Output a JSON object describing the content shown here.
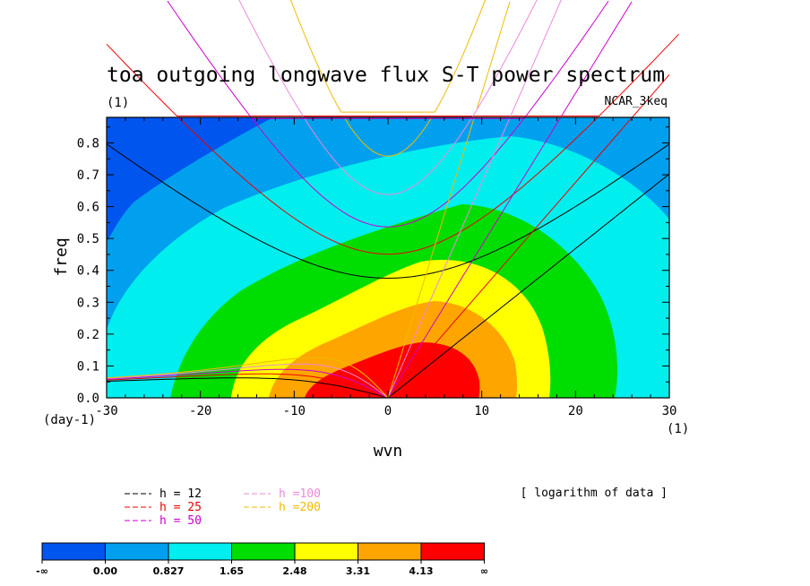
{
  "chart_data": {
    "type": "contour",
    "title": "toa outgoing longwave flux S-T power spectrum",
    "subtitle_units": "(1)",
    "model": "NCAR_3keq",
    "xlabel": "wvn",
    "ylabel": "freq",
    "x_unit": "(1)",
    "y_unit": "(day-1)",
    "xlim": [
      -30,
      30
    ],
    "ylim": [
      0,
      0.88
    ],
    "x_ticks": [
      -30,
      -20,
      -10,
      0,
      10,
      20,
      30
    ],
    "x_tick_labels": [
      "-30",
      "-20",
      "-10",
      "0",
      "10",
      "20",
      "30"
    ],
    "y_ticks": [
      0,
      0.1,
      0.2,
      0.3,
      0.4,
      0.5,
      0.6,
      0.7,
      0.8
    ],
    "y_tick_labels": [
      "0.0",
      "0.1",
      "0.2",
      "0.3",
      "0.4",
      "0.5",
      "0.6",
      "0.7",
      "0.8"
    ],
    "data_note": "[ logarithm of data ]",
    "levels": [
      "-∞",
      "0.00",
      "0.827",
      "1.65",
      "2.48",
      "3.31",
      "4.13",
      "∞"
    ],
    "level_colors": [
      "#0055ee",
      "#00a0ee",
      "#00eeee",
      "#00dd00",
      "#ffff00",
      "#ffa500",
      "#ff0000"
    ],
    "dispersion_curves": [
      {
        "label": "h = 12",
        "color": "#000000",
        "h": 12
      },
      {
        "label": "h = 25",
        "color": "#ee0000",
        "h": 25
      },
      {
        "label": "h = 50",
        "color": "#cc00cc",
        "h": 50
      },
      {
        "label": "h =100",
        "color": "#ee88dd",
        "h": 100
      },
      {
        "label": "h =200",
        "color": "#eebb00",
        "h": 200
      }
    ]
  }
}
